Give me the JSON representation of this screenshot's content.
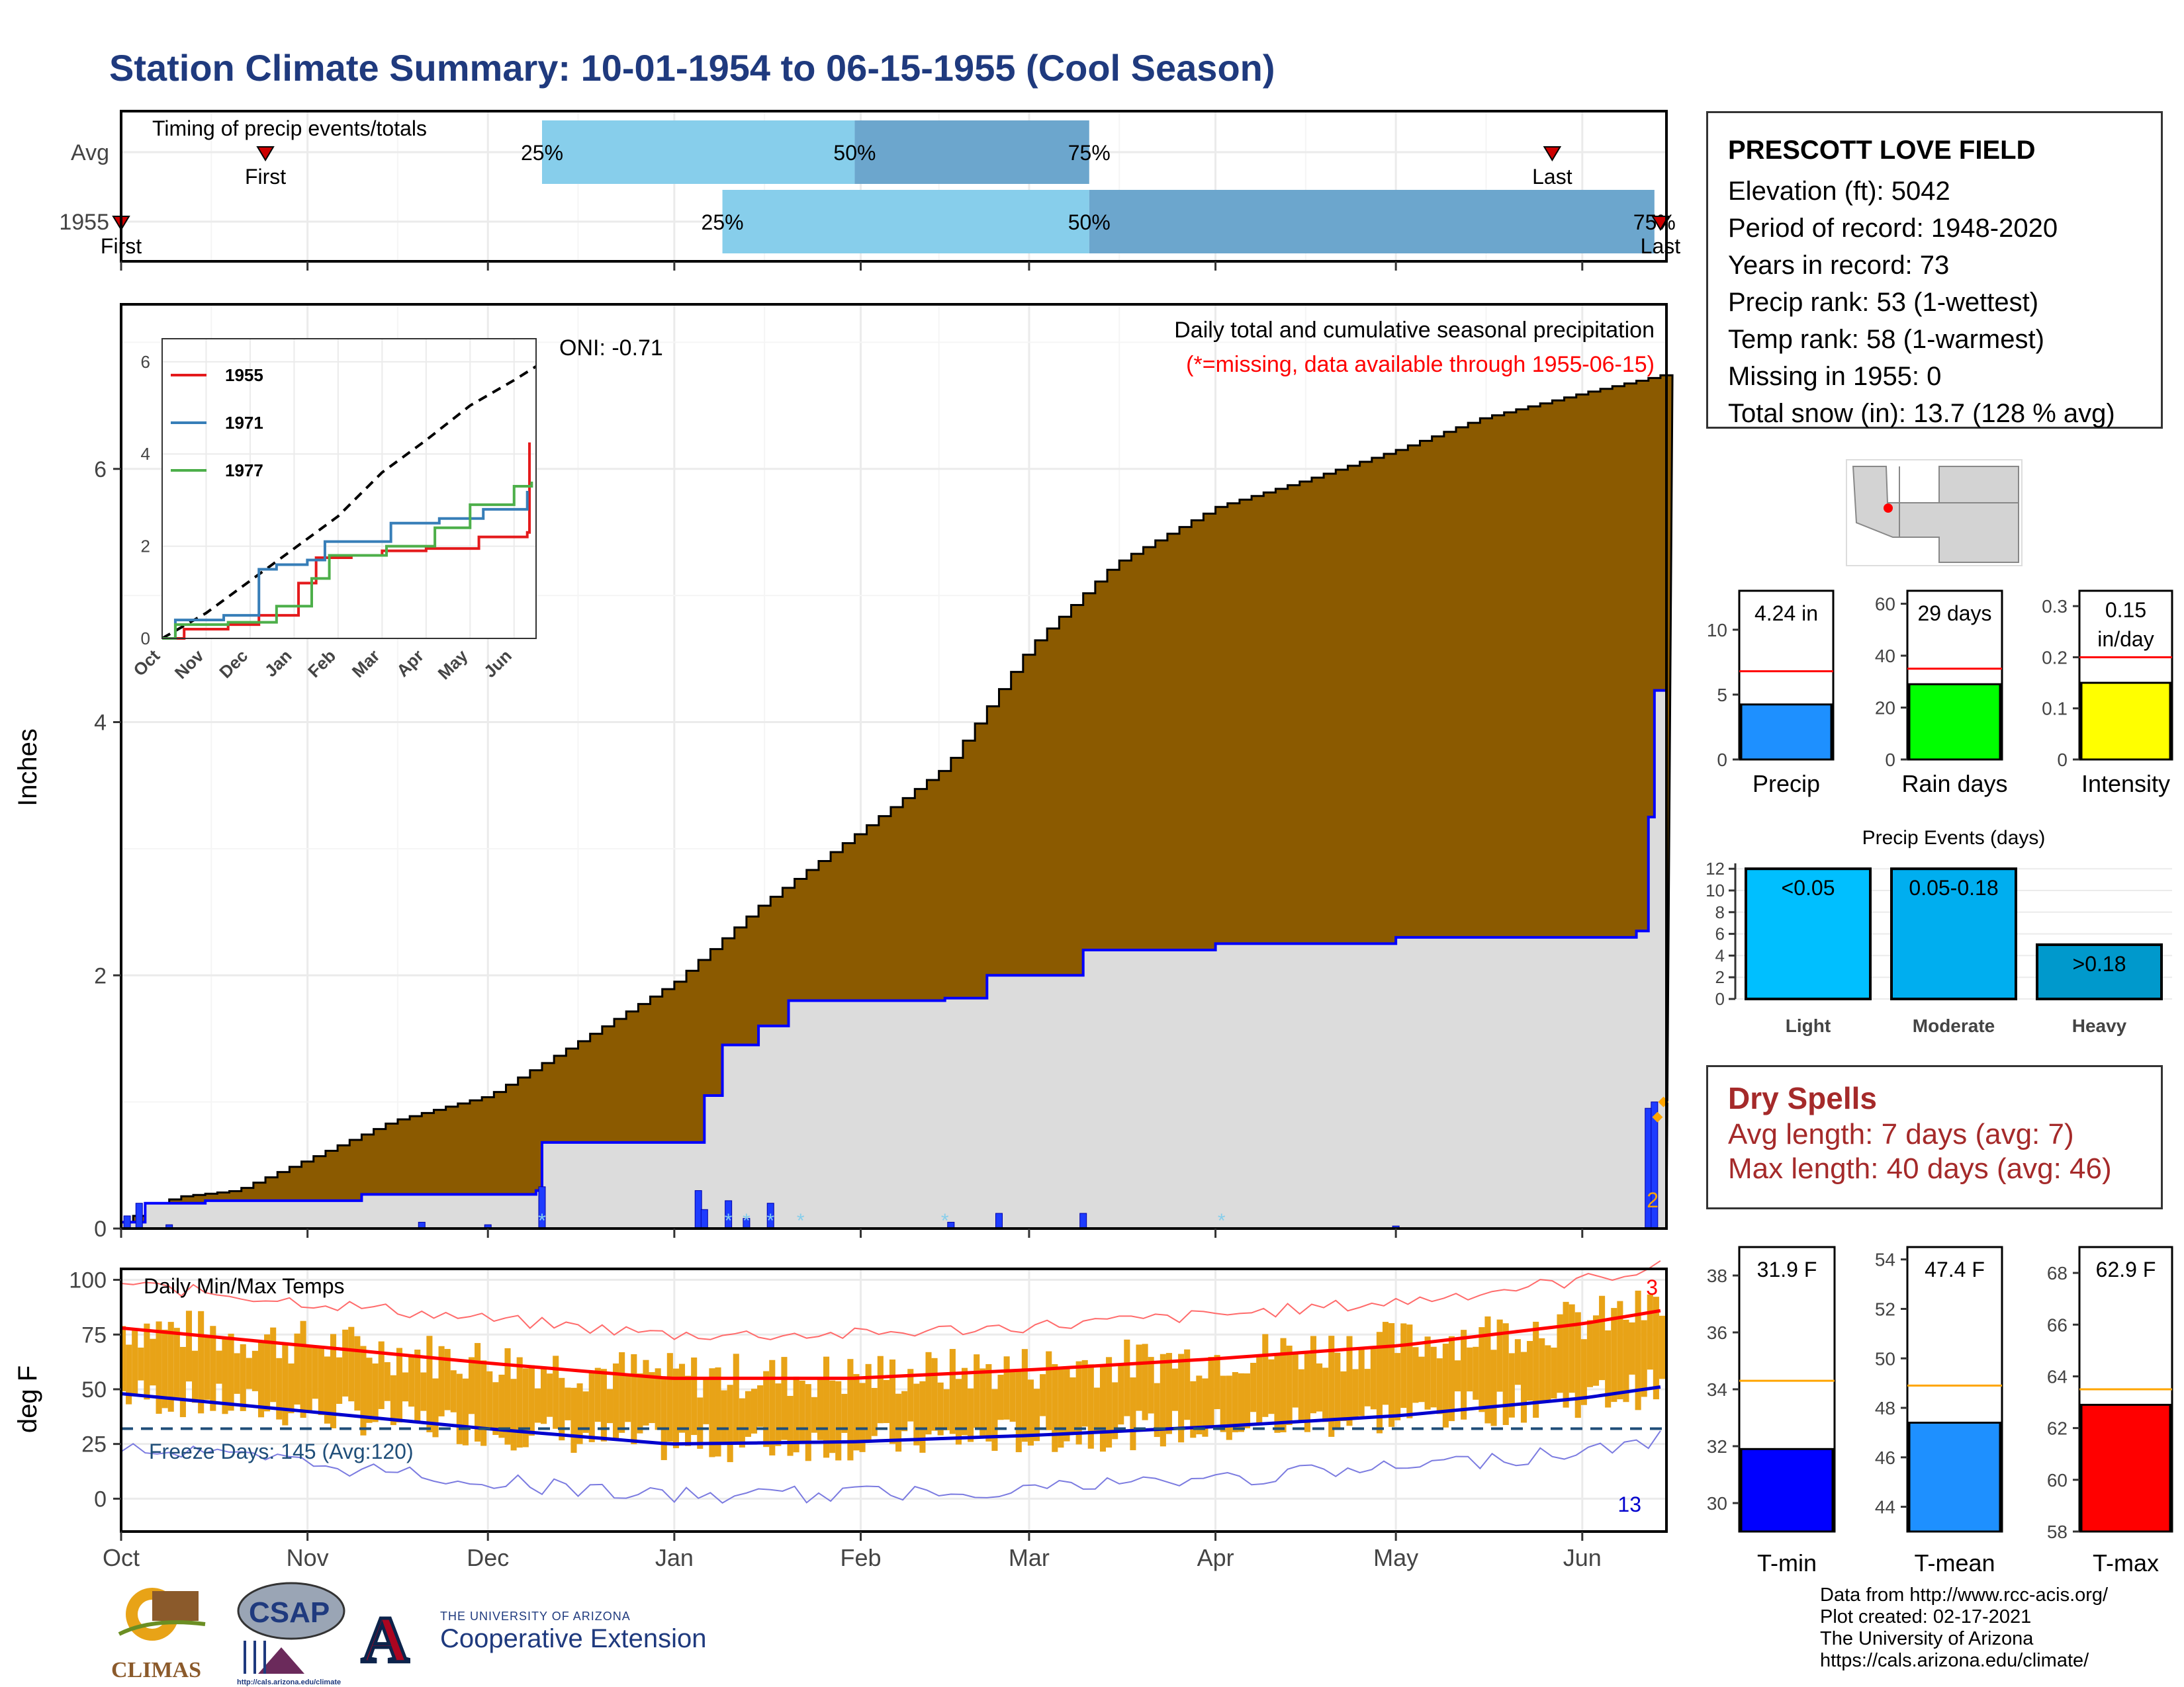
{
  "title": "Station Climate Summary: 10-01-1954 to 06-15-1955 (Cool Season)",
  "station": {
    "name": "PRESCOTT LOVE FIELD",
    "lines": [
      "Elevation (ft): 5042",
      "Period of record: 1948-2020",
      "Years in record: 73",
      "Precip rank: 53 (1-wettest)",
      "Temp rank: 58 (1-warmest)",
      "Missing in 1955: 0",
      "Total snow (in): 13.7 (128 % avg)"
    ]
  },
  "dry_spells": {
    "title": "Dry Spells",
    "avg": "Avg length: 7 days (avg: 7)",
    "max": "Max length: 40 days (avg: 46)"
  },
  "footer": [
    "Data from http://www.rcc-acis.org/",
    "Plot created: 02-17-2021",
    "The University of Arizona",
    "https://cals.arizona.edu/climate/"
  ],
  "logos": {
    "climas": "CLIMAS",
    "csap": "CSAP",
    "csap_url": "http://cals.arizona.edu/climate",
    "ua_small": "THE UNIVERSITY OF ARIZONA",
    "ua_big": "Cooperative Extension",
    "ua_letter": "A"
  },
  "colors": {
    "title": "#1F3A7E",
    "timing_light": "#87CEEB",
    "timing_dark": "#6CA6CD",
    "cumulative_fill": "#8B5A00",
    "avg_fill": "#DCDCDC",
    "avg_line": "#0000FF",
    "tmax_band": "#E8A317",
    "tmax_mean": "#FF0000",
    "tmin_mean": "#0000CD",
    "precip_bar": "#1E90FF",
    "raindays_bar": "#00FF00",
    "intensity_bar": "#FFFF00",
    "tmin_bar": "#0000FF",
    "tmean_bar": "#1E90FF",
    "tmax_bar": "#FF0000"
  },
  "chart_data": [
    {
      "type": "timeline",
      "name": "timing",
      "title": "Timing of precip events/totals",
      "rows": [
        "Avg",
        "1955"
      ],
      "months": [
        "Oct",
        "Nov",
        "Dec",
        "Jan",
        "Feb",
        "Mar",
        "Apr",
        "May",
        "Jun"
      ],
      "avg": {
        "first": "1954-10-25",
        "p25": "1954-12-10",
        "p50": "1955-01-31",
        "p75": "1955-03-11",
        "last": "1955-05-27",
        "first_label": "First",
        "last_label": "Last"
      },
      "y1955": {
        "first": "1954-10-01",
        "p25": "1955-01-09",
        "p50": "1955-03-11",
        "p75": "1955-06-13",
        "last": "1955-06-14",
        "first_label": "First",
        "last_label": "Last"
      },
      "pct_labels": [
        "25%",
        "50%",
        "75%"
      ]
    },
    {
      "type": "area",
      "name": "precip",
      "title": "Daily total and cumulative seasonal precipitation",
      "subtitle": "(*=missing, data available through 1955-06-15)",
      "ylabel": "Inches",
      "ylim": [
        0,
        7.3
      ],
      "yticks": [
        0,
        2,
        4,
        6
      ],
      "oni": "ONI: -0.71",
      "count_label": "2",
      "cumulative_points": [
        [
          "1954-10-01",
          0.05
        ],
        [
          "1954-10-05",
          0.15
        ],
        [
          "1954-10-10",
          0.25
        ],
        [
          "1954-10-20",
          0.3
        ],
        [
          "1954-11-01",
          0.55
        ],
        [
          "1954-11-15",
          0.85
        ],
        [
          "1954-12-01",
          1.05
        ],
        [
          "1954-12-15",
          1.45
        ],
        [
          "1955-01-01",
          1.95
        ],
        [
          "1955-01-15",
          2.55
        ],
        [
          "1955-02-01",
          3.15
        ],
        [
          "1955-02-15",
          3.65
        ],
        [
          "1955-03-01",
          4.6
        ],
        [
          "1955-03-15",
          5.25
        ],
        [
          "1955-04-01",
          5.7
        ],
        [
          "1955-04-15",
          5.9
        ],
        [
          "1955-05-01",
          6.15
        ],
        [
          "1955-05-15",
          6.4
        ],
        [
          "1955-06-01",
          6.6
        ],
        [
          "1955-06-15",
          6.75
        ]
      ],
      "year1955_points": [
        [
          "1954-10-01",
          0.05
        ],
        [
          "1954-10-05",
          0.2
        ],
        [
          "1954-10-15",
          0.22
        ],
        [
          "1954-11-10",
          0.27
        ],
        [
          "1954-12-09",
          0.3
        ],
        [
          "1954-12-10",
          0.68
        ],
        [
          "1955-01-05",
          0.68
        ],
        [
          "1955-01-06",
          1.05
        ],
        [
          "1955-01-09",
          1.45
        ],
        [
          "1955-01-15",
          1.6
        ],
        [
          "1955-01-20",
          1.8
        ],
        [
          "1955-02-15",
          1.82
        ],
        [
          "1955-02-22",
          2.0
        ],
        [
          "1955-03-10",
          2.2
        ],
        [
          "1955-04-01",
          2.25
        ],
        [
          "1955-05-01",
          2.3
        ],
        [
          "1955-06-10",
          2.35
        ],
        [
          "1955-06-12",
          3.25
        ],
        [
          "1955-06-13",
          4.25
        ],
        [
          "1955-06-15",
          4.25
        ]
      ],
      "daily_bars": [
        [
          "1954-10-02",
          0.1
        ],
        [
          "1954-10-04",
          0.2
        ],
        [
          "1954-10-09",
          0.03
        ],
        [
          "1954-11-20",
          0.05
        ],
        [
          "1954-12-01",
          0.03
        ],
        [
          "1954-12-10",
          0.33
        ],
        [
          "1955-01-05",
          0.3
        ],
        [
          "1955-01-06",
          0.15
        ],
        [
          "1955-01-10",
          0.22
        ],
        [
          "1955-01-13",
          0.08
        ],
        [
          "1955-01-17",
          0.2
        ],
        [
          "1955-02-16",
          0.05
        ],
        [
          "1955-02-24",
          0.12
        ],
        [
          "1955-03-10",
          0.12
        ],
        [
          "1955-05-01",
          0.02
        ],
        [
          "1955-06-12",
          0.95
        ],
        [
          "1955-06-13",
          1.0
        ]
      ],
      "months": [
        "Oct",
        "Nov",
        "Dec",
        "Jan",
        "Feb",
        "Mar",
        "Apr",
        "May",
        "Jun"
      ]
    },
    {
      "type": "line",
      "name": "inset",
      "series": [
        {
          "name": "1955",
          "color": "#E41A1C",
          "values": [
            [
              0,
              0
            ],
            [
              0.5,
              0.2
            ],
            [
              1.5,
              0.3
            ],
            [
              2.2,
              0.5
            ],
            [
              3.1,
              1.2
            ],
            [
              3.5,
              1.75
            ],
            [
              4.3,
              1.8
            ],
            [
              5,
              1.9
            ],
            [
              6,
              1.95
            ],
            [
              7.2,
              2.2
            ],
            [
              8.3,
              2.3
            ],
            [
              8.35,
              4.25
            ]
          ]
        },
        {
          "name": "1971",
          "color": "#377EB8",
          "values": [
            [
              0,
              0
            ],
            [
              0.3,
              0.4
            ],
            [
              1.4,
              0.5
            ],
            [
              2.2,
              1.5
            ],
            [
              2.6,
              1.6
            ],
            [
              3.3,
              1.7
            ],
            [
              3.7,
              2.1
            ],
            [
              5.2,
              2.5
            ],
            [
              6.3,
              2.6
            ],
            [
              7.3,
              2.8
            ],
            [
              8.3,
              3.2
            ]
          ]
        },
        {
          "name": "1977",
          "color": "#4DAF4A",
          "values": [
            [
              0,
              0
            ],
            [
              0.3,
              0.3
            ],
            [
              1.5,
              0.35
            ],
            [
              2.6,
              0.7
            ],
            [
              3.4,
              1.3
            ],
            [
              3.8,
              1.8
            ],
            [
              5.1,
              2.0
            ],
            [
              6.2,
              2.4
            ],
            [
              7,
              2.9
            ],
            [
              8,
              3.3
            ],
            [
              8.4,
              3.4
            ]
          ]
        }
      ],
      "avg_dashed": [
        [
          0,
          0
        ],
        [
          1,
          0.55
        ],
        [
          2,
          1.25
        ],
        [
          3,
          1.95
        ],
        [
          4,
          2.65
        ],
        [
          5,
          3.6
        ],
        [
          6,
          4.3
        ],
        [
          7,
          5.05
        ],
        [
          8,
          5.6
        ],
        [
          8.5,
          5.9
        ]
      ],
      "yticks": [
        0,
        2,
        4,
        6
      ],
      "ylim": [
        0,
        6.5
      ],
      "xticks": [
        "Oct",
        "Nov",
        "Dec",
        "Jan",
        "Feb",
        "Mar",
        "Apr",
        "May",
        "Jun"
      ]
    },
    {
      "type": "bar",
      "name": "temps",
      "title": "Daily Min/Max Temps",
      "ylabel": "deg F",
      "ylim": [
        -15,
        105
      ],
      "yticks": [
        0,
        25,
        50,
        75,
        100
      ],
      "freeze_label": "Freeze Days: 145 (Avg:120)",
      "count_max": "3",
      "count_min": "13",
      "freeze_line": 32,
      "avg_max_curve": [
        [
          0,
          78
        ],
        [
          1,
          70
        ],
        [
          2,
          62
        ],
        [
          3,
          55
        ],
        [
          4,
          55
        ],
        [
          5,
          59
        ],
        [
          6,
          64
        ],
        [
          7,
          70
        ],
        [
          8,
          80
        ],
        [
          8.5,
          87
        ]
      ],
      "avg_min_curve": [
        [
          0,
          48
        ],
        [
          1,
          40
        ],
        [
          2,
          32
        ],
        [
          3,
          25
        ],
        [
          4,
          26
        ],
        [
          5,
          29
        ],
        [
          6,
          33
        ],
        [
          7,
          38
        ],
        [
          8,
          46
        ],
        [
          8.5,
          52
        ]
      ],
      "months": [
        "Oct",
        "Nov",
        "Dec",
        "Jan",
        "Feb",
        "Mar",
        "Apr",
        "May",
        "Jun"
      ]
    },
    {
      "type": "bar",
      "name": "summary_precip",
      "panels": [
        {
          "label": "Precip",
          "value": 4.24,
          "value_text": "4.24 in",
          "avg": 6.8,
          "ylim": [
            0,
            13
          ],
          "yticks": [
            0,
            5,
            10
          ],
          "color": "#1E90FF"
        },
        {
          "label": "Rain days",
          "value": 29,
          "value_text": "29 days",
          "avg": 35,
          "ylim": [
            0,
            65
          ],
          "yticks": [
            0,
            20,
            40,
            60
          ],
          "color": "#00FF00"
        },
        {
          "label": "Intensity",
          "value": 0.15,
          "value_text": "0.15 in/day",
          "avg": 0.2,
          "ylim": [
            0,
            0.33
          ],
          "yticks": [
            0.0,
            0.1,
            0.2,
            0.3
          ],
          "color": "#FFFF00"
        }
      ]
    },
    {
      "type": "bar",
      "name": "events",
      "title": "Precip Events (days)",
      "categories": [
        "Light",
        "Moderate",
        "Heavy"
      ],
      "bar_labels": [
        "<0.05",
        "0.05-0.18",
        ">0.18"
      ],
      "values": [
        12,
        12,
        5
      ],
      "colors": [
        "#00BFFF",
        "#00AEEF",
        "#0099CC"
      ],
      "ylim": [
        0,
        12.5
      ],
      "yticks": [
        0,
        2,
        4,
        6,
        8,
        10,
        12
      ]
    },
    {
      "type": "bar",
      "name": "summary_temp",
      "panels": [
        {
          "label": "T-min",
          "value": 31.9,
          "value_text": "31.9 F",
          "avg": 34.3,
          "ylim": [
            29,
            39
          ],
          "yticks": [
            30,
            32,
            34,
            36,
            38
          ],
          "color": "#0000FF"
        },
        {
          "label": "T-mean",
          "value": 47.4,
          "value_text": "47.4 F",
          "avg": 48.9,
          "ylim": [
            43,
            54.5
          ],
          "yticks": [
            44,
            46,
            48,
            50,
            52,
            54
          ],
          "color": "#1E90FF"
        },
        {
          "label": "T-max",
          "value": 62.9,
          "value_text": "62.9 F",
          "avg": 63.5,
          "ylim": [
            58,
            69
          ],
          "yticks": [
            58,
            60,
            62,
            64,
            66,
            68
          ],
          "color": "#FF0000"
        }
      ]
    }
  ]
}
